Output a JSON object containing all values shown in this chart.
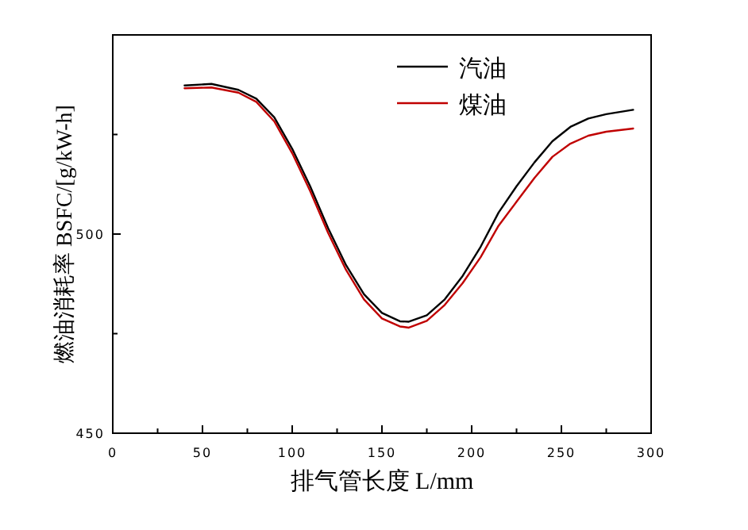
{
  "chart_data": {
    "type": "line",
    "xlabel": "排气管长度 L/mm",
    "ylabel": "燃油消耗率 BSFC/[g/kW-h]",
    "xlim": [
      0,
      300
    ],
    "xticks": [
      0,
      {
        "value": 25,
        "label": null
      },
      50,
      {
        "value": 75,
        "label": null
      },
      100,
      {
        "value": 125,
        "label": null
      },
      150,
      {
        "value": 175,
        "label": null
      },
      200,
      {
        "value": 225,
        "label": null
      },
      250,
      {
        "value": 275,
        "label": null
      },
      300
    ],
    "ylim": [
      450,
      550
    ],
    "yticks": [
      450,
      {
        "value": 475,
        "label": null
      },
      500,
      {
        "value": 525,
        "label": null
      }
    ],
    "legend": "top right",
    "grid": false,
    "marker": "none",
    "line_style": "solid",
    "series": [
      {
        "name": "汽油",
        "color": "#000000",
        "x": [
          40,
          55,
          70,
          80,
          90,
          100,
          110,
          120,
          130,
          140,
          150,
          160,
          165,
          175,
          185,
          195,
          205,
          215,
          225,
          235,
          245,
          255,
          265,
          275,
          290
        ],
        "values": [
          537.3,
          537.7,
          536.2,
          534,
          529.3,
          521.4,
          512,
          501.5,
          492.2,
          484.9,
          480.2,
          478.1,
          478,
          479.6,
          483.6,
          489.5,
          496.8,
          505.4,
          512,
          518,
          523.3,
          526.9,
          529,
          530.1,
          531.2
        ]
      },
      {
        "name": "煤油",
        "color": "#c00000",
        "x": [
          40,
          55,
          70,
          80,
          90,
          100,
          110,
          120,
          130,
          140,
          150,
          160,
          165,
          175,
          185,
          195,
          205,
          215,
          225,
          235,
          245,
          255,
          265,
          275,
          290
        ],
        "values": [
          536.6,
          536.8,
          535.5,
          533.2,
          528.3,
          520.3,
          510.8,
          500.3,
          491,
          483.6,
          478.8,
          476.8,
          476.5,
          478.2,
          482.2,
          487.7,
          494.2,
          502.1,
          508.1,
          514.1,
          519.4,
          522.7,
          524.7,
          525.7,
          526.5
        ]
      }
    ]
  }
}
